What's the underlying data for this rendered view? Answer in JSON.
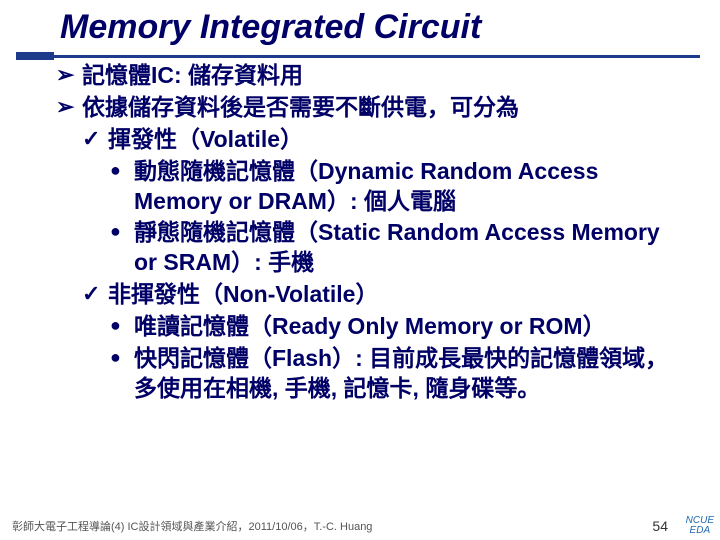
{
  "slide": {
    "title": "Memory Integrated Circuit",
    "accent_color": "#1e3a8a",
    "title_color": "#000066",
    "text_color": "#000066",
    "fontsize_title": 34,
    "fontsize_body": 23
  },
  "bullets": {
    "l1_a": "記憶體IC: 儲存資料用",
    "l1_b": "依據儲存資料後是否需要不斷供電，可分為",
    "l2_a": "揮發性（Volatile）",
    "l3_a": "動態隨機記憶體（Dynamic Random Access Memory or DRAM）: 個人電腦",
    "l3_b": "靜態隨機記憶體（Static Random Access Memory or SRAM）: 手機",
    "l2_b": "非揮發性（Non-Volatile）",
    "l3_c": "唯讀記憶體（Ready Only Memory or ROM）",
    "l3_d": "快閃記憶體（Flash）: 目前成長最快的記憶體領域，多使用在相機, 手機, 記憶卡, 隨身碟等。"
  },
  "footer": {
    "left": "彰師大電子工程導論(4) IC設計領域與產業介紹，2011/10/06，T.-C. Huang",
    "page": "54",
    "logo_top": "NCUE",
    "logo_bottom": "EDA"
  }
}
